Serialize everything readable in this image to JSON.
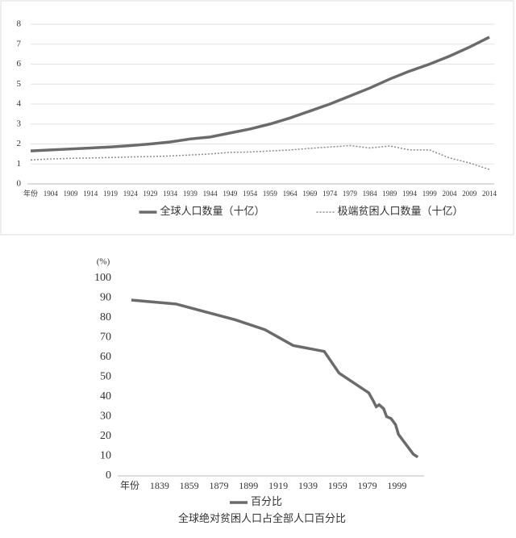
{
  "chart_data": [
    {
      "type": "line",
      "categories": [
        "年份",
        "1904",
        "1909",
        "1914",
        "1919",
        "1924",
        "1929",
        "1934",
        "1939",
        "1944",
        "1949",
        "1954",
        "1959",
        "1964",
        "1969",
        "1974",
        "1979",
        "1984",
        "1989",
        "1994",
        "1999",
        "2004",
        "2009",
        "2014"
      ],
      "series": [
        {
          "name": "全球人口数量（十亿）",
          "color": "#6b6b6b",
          "line_style": "solid",
          "values": [
            1.65,
            1.7,
            1.75,
            1.8,
            1.85,
            1.92,
            2.0,
            2.1,
            2.25,
            2.35,
            2.55,
            2.75,
            3.0,
            3.3,
            3.65,
            4.0,
            4.4,
            4.8,
            5.25,
            5.65,
            6.0,
            6.4,
            6.85,
            7.35
          ]
        },
        {
          "name": "极端贫困人口数量（十亿）",
          "color": "#8a8a8a",
          "line_style": "dotted",
          "values": [
            1.2,
            1.25,
            1.28,
            1.3,
            1.32,
            1.35,
            1.37,
            1.4,
            1.45,
            1.5,
            1.58,
            1.6,
            1.65,
            1.7,
            1.78,
            1.85,
            1.92,
            1.8,
            1.9,
            1.7,
            1.7,
            1.3,
            1.05,
            0.72
          ]
        }
      ],
      "ylim": [
        0,
        8
      ],
      "yticks": [
        0,
        1,
        2,
        3,
        4,
        5,
        6,
        7,
        8
      ],
      "grid": true
    },
    {
      "type": "line",
      "y_label": "(%)",
      "caption": "全球绝对贫困人口占全部人口百分比",
      "x": [
        1820,
        1850,
        1870,
        1890,
        1910,
        1929,
        1950,
        1960,
        1970,
        1980,
        1983,
        1985,
        1987,
        1990,
        1992,
        1995,
        1998,
        2000,
        2005,
        2010,
        2013
      ],
      "series": [
        {
          "name": "百分比",
          "color": "#6b6b6b",
          "line_style": "solid",
          "values": [
            89,
            87,
            83,
            79,
            74,
            66,
            63,
            52,
            47,
            42,
            38,
            35,
            36,
            34,
            30,
            29,
            26,
            21,
            16,
            11,
            9.5
          ]
        }
      ],
      "xlim": [
        1813,
        2014
      ],
      "xticks": [
        {
          "value": 1819,
          "label": "年份"
        },
        1839,
        1859,
        1879,
        1899,
        1919,
        1939,
        1959,
        1979,
        1999
      ],
      "ylim": [
        0,
        100
      ],
      "yticks": [
        0,
        10,
        20,
        30,
        40,
        50,
        60,
        70,
        80,
        90,
        100
      ],
      "grid": false
    }
  ]
}
